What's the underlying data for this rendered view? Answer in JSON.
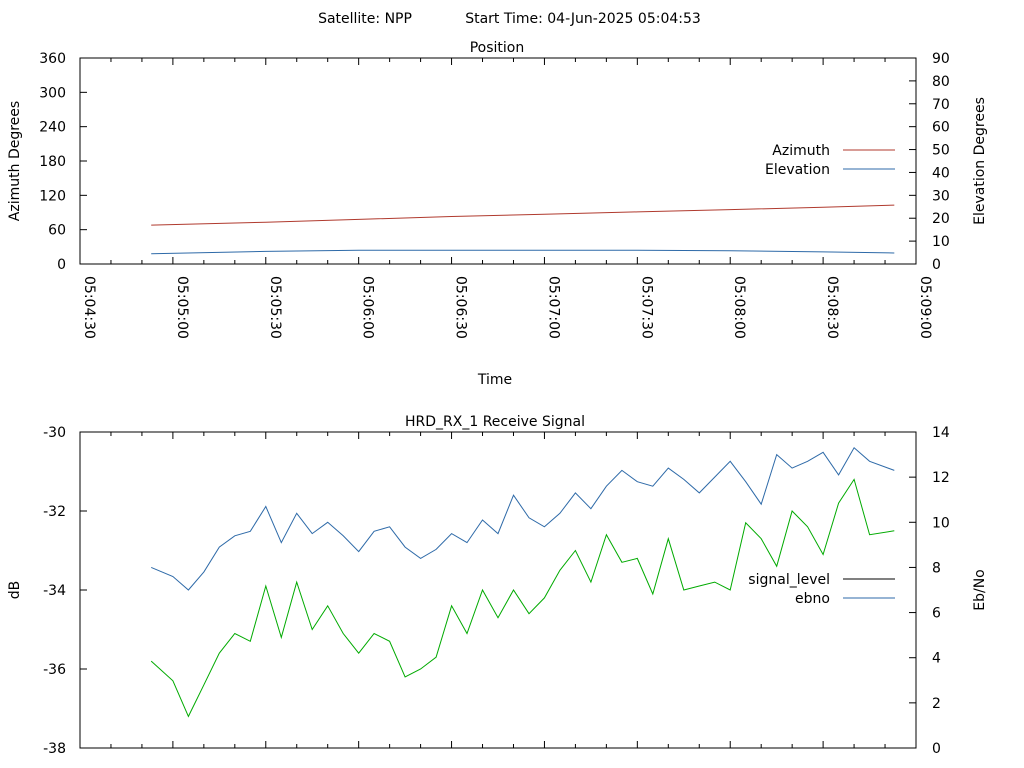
{
  "header": {
    "satellite": "Satellite: NPP",
    "start_time": "Start Time: 04-Jun-2025 05:04:53"
  },
  "chart_data": [
    {
      "type": "line",
      "title": "Position",
      "xlabel": "Time",
      "ylabel": "Azimuth Degrees",
      "y2label": "Elevation Degrees",
      "xlim": [
        "05:04:30",
        "05:09:00"
      ],
      "x_ticks": [
        "05:04:30",
        "05:05:00",
        "05:05:30",
        "05:06:00",
        "05:06:30",
        "05:07:00",
        "05:07:30",
        "05:08:00",
        "05:08:30",
        "05:09:00"
      ],
      "ylim": [
        0,
        360
      ],
      "y_ticks": [
        0,
        60,
        120,
        180,
        240,
        300,
        360
      ],
      "y2lim": [
        0,
        90
      ],
      "y2_ticks": [
        0,
        10,
        20,
        30,
        40,
        50,
        60,
        70,
        80,
        90
      ],
      "legend_position": "right",
      "grid": false,
      "series": [
        {
          "name": "Azimuth",
          "axis": "y",
          "color": "#b03a2e",
          "x": [
            "05:04:53",
            "05:05:30",
            "05:06:00",
            "05:06:30",
            "05:07:00",
            "05:07:30",
            "05:08:00",
            "05:08:30",
            "05:08:53"
          ],
          "values": [
            68,
            73,
            78,
            83,
            87,
            91,
            95,
            99,
            103
          ]
        },
        {
          "name": "Elevation",
          "axis": "y2",
          "color": "#2e6aa8",
          "x": [
            "05:04:53",
            "05:05:30",
            "05:06:00",
            "05:06:30",
            "05:07:00",
            "05:07:30",
            "05:08:00",
            "05:08:30",
            "05:08:53"
          ],
          "values": [
            4.5,
            5.5,
            6,
            6,
            6,
            6,
            5.8,
            5.3,
            4.8
          ]
        }
      ]
    },
    {
      "type": "line",
      "title": "HRD_RX_1 Receive Signal",
      "xlabel": "",
      "ylabel": "dB",
      "y2label": "Eb/No",
      "xlim": [
        "05:04:30",
        "05:09:00"
      ],
      "ylim": [
        -38,
        -30
      ],
      "y_ticks": [
        -38,
        -36,
        -34,
        -32,
        -30
      ],
      "y2lim": [
        0,
        14
      ],
      "y2_ticks": [
        0,
        2,
        4,
        6,
        8,
        10,
        12,
        14
      ],
      "legend_position": "right",
      "grid": false,
      "series": [
        {
          "name": "signal_level",
          "axis": "y",
          "color": "#000000",
          "x": [],
          "values": []
        },
        {
          "name": "ebno",
          "axis": "y2",
          "color": "#2e6aa8",
          "x": [
            "05:04:53",
            "05:05:00",
            "05:05:05",
            "05:05:10",
            "05:05:15",
            "05:05:20",
            "05:05:25",
            "05:05:30",
            "05:05:35",
            "05:05:40",
            "05:05:45",
            "05:05:50",
            "05:05:55",
            "05:06:00",
            "05:06:05",
            "05:06:10",
            "05:06:15",
            "05:06:20",
            "05:06:25",
            "05:06:30",
            "05:06:35",
            "05:06:40",
            "05:06:45",
            "05:06:50",
            "05:06:55",
            "05:07:00",
            "05:07:05",
            "05:07:10",
            "05:07:15",
            "05:07:20",
            "05:07:25",
            "05:07:30",
            "05:07:35",
            "05:07:40",
            "05:07:45",
            "05:07:50",
            "05:07:55",
            "05:08:00",
            "05:08:05",
            "05:08:10",
            "05:08:15",
            "05:08:20",
            "05:08:25",
            "05:08:30",
            "05:08:35",
            "05:08:40",
            "05:08:45",
            "05:08:53"
          ],
          "values": [
            8.0,
            7.6,
            7.0,
            7.8,
            8.9,
            9.4,
            9.6,
            10.7,
            9.1,
            10.4,
            9.5,
            10.0,
            9.4,
            8.7,
            9.6,
            9.8,
            8.9,
            8.4,
            8.8,
            9.5,
            9.1,
            10.1,
            9.5,
            11.2,
            10.2,
            9.8,
            10.4,
            11.3,
            10.6,
            11.6,
            12.3,
            11.8,
            11.6,
            12.4,
            11.9,
            11.3,
            12.0,
            12.7,
            11.8,
            10.8,
            13.0,
            12.4,
            12.7,
            13.1,
            12.1,
            13.3,
            12.7,
            12.3
          ]
        },
        {
          "name": "",
          "axis": "y",
          "color": "#00aa00",
          "x": [
            "05:04:53",
            "05:05:00",
            "05:05:05",
            "05:05:10",
            "05:05:15",
            "05:05:20",
            "05:05:25",
            "05:05:30",
            "05:05:35",
            "05:05:40",
            "05:05:45",
            "05:05:50",
            "05:05:55",
            "05:06:00",
            "05:06:05",
            "05:06:10",
            "05:06:15",
            "05:06:20",
            "05:06:25",
            "05:06:30",
            "05:06:35",
            "05:06:40",
            "05:06:45",
            "05:06:50",
            "05:06:55",
            "05:07:00",
            "05:07:05",
            "05:07:10",
            "05:07:15",
            "05:07:20",
            "05:07:25",
            "05:07:30",
            "05:07:35",
            "05:07:40",
            "05:07:45",
            "05:07:50",
            "05:07:55",
            "05:08:00",
            "05:08:05",
            "05:08:10",
            "05:08:15",
            "05:08:20",
            "05:08:25",
            "05:08:30",
            "05:08:35",
            "05:08:40",
            "05:08:45",
            "05:08:53"
          ],
          "values": [
            -35.8,
            -36.3,
            -37.2,
            -36.4,
            -35.6,
            -35.1,
            -35.3,
            -33.9,
            -35.2,
            -33.8,
            -35.0,
            -34.4,
            -35.1,
            -35.6,
            -35.1,
            -35.3,
            -36.2,
            -36.0,
            -35.7,
            -34.4,
            -35.1,
            -34.0,
            -34.7,
            -34.0,
            -34.6,
            -34.2,
            -33.5,
            -33.0,
            -33.8,
            -32.6,
            -33.3,
            -33.2,
            -34.1,
            -32.7,
            -34.0,
            -33.9,
            -33.8,
            -34.0,
            -32.3,
            -32.7,
            -33.4,
            -32.0,
            -32.4,
            -33.1,
            -31.8,
            -31.2,
            -32.6,
            -32.5
          ]
        }
      ]
    }
  ]
}
